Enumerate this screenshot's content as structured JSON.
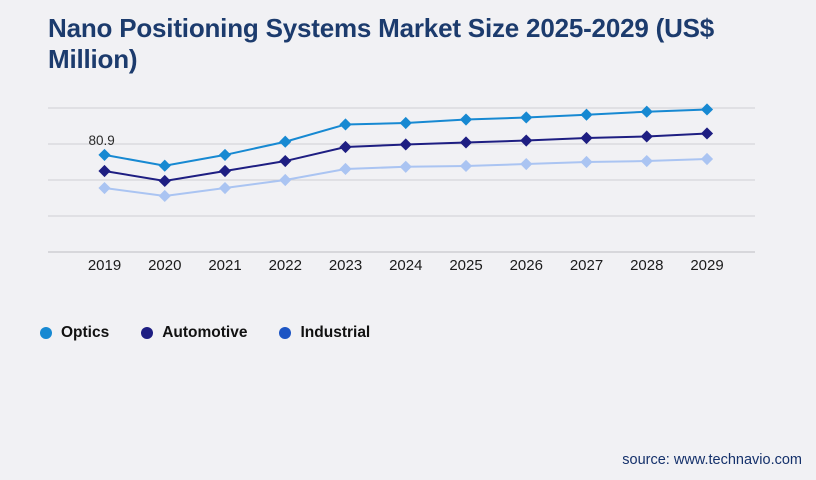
{
  "title": "Nano Positioning Systems Market Size 2025-2029 (US$ Million)",
  "source": "source: www.technavio.com",
  "colors": {
    "background": "#f1f1f4",
    "title": "#1c3b6d",
    "gridline": "#cfcfd3",
    "axis": "#bdbdc2",
    "axis_label": "#1b1b1b",
    "annotation": "#2b2b2b",
    "source_text": "#15316b"
  },
  "chart_data": {
    "type": "line",
    "title": "Nano Positioning Systems Market Size 2025-2029 (US$ Million)",
    "categories": [
      "2019",
      "2020",
      "2021",
      "2022",
      "2023",
      "2024",
      "2025",
      "2026",
      "2027",
      "2028",
      "2029"
    ],
    "series": [
      {
        "name": "Optics",
        "color": "#1789d2",
        "legend_color": "#1789d2",
        "values": [
          80.9,
          71.9,
          80.9,
          91.9,
          106.3,
          107.5,
          110.4,
          112.1,
          114.4,
          116.9,
          118.8
        ],
        "data_label": {
          "index": 0,
          "text": "80.9"
        }
      },
      {
        "name": "Automotive",
        "color": "#1e1e82",
        "legend_color": "#1e1e82",
        "values": [
          67.5,
          59.2,
          67.5,
          75.8,
          87.5,
          89.6,
          91.3,
          92.9,
          95.0,
          96.3,
          98.8
        ]
      },
      {
        "name": "Industrial",
        "color": "#aac4f2",
        "legend_color": "#1d55c4",
        "values": [
          53.3,
          46.7,
          53.3,
          60.0,
          69.2,
          71.0,
          71.7,
          73.3,
          75.0,
          75.8,
          77.5
        ]
      }
    ],
    "xlabel": "",
    "ylabel": "",
    "ylim": [
      0,
      120
    ],
    "gridline_step": 30,
    "grid": true,
    "legend_position": "bottom-left",
    "marker": "diamond"
  }
}
